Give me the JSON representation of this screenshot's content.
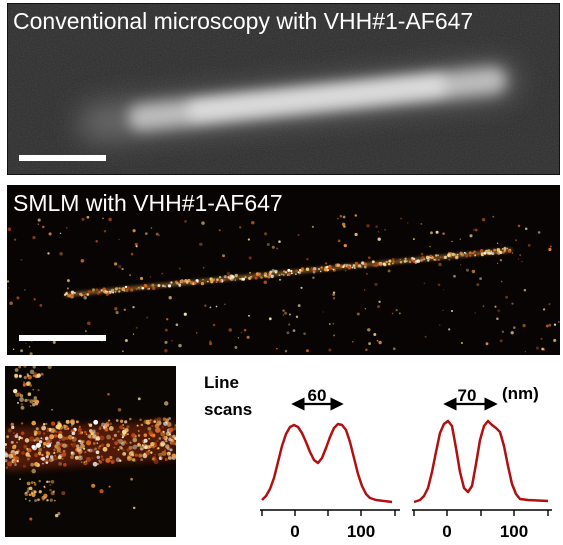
{
  "panels": {
    "conventional": {
      "title": "Conventional microscopy with VHH#1-AF647"
    },
    "smlm": {
      "title": "SMLM with VHH#1-AF647"
    }
  },
  "line_scans": {
    "label_line1": "Line",
    "label_line2": "scans",
    "unit": "(nm)",
    "scan1": {
      "distance": "60",
      "tick_labels": [
        "0",
        "100"
      ]
    },
    "scan2": {
      "distance": "70",
      "tick_labels": [
        "0",
        "100"
      ]
    }
  },
  "colors": {
    "profile": "#b01010",
    "smlm_glow": "#f4c070"
  }
}
